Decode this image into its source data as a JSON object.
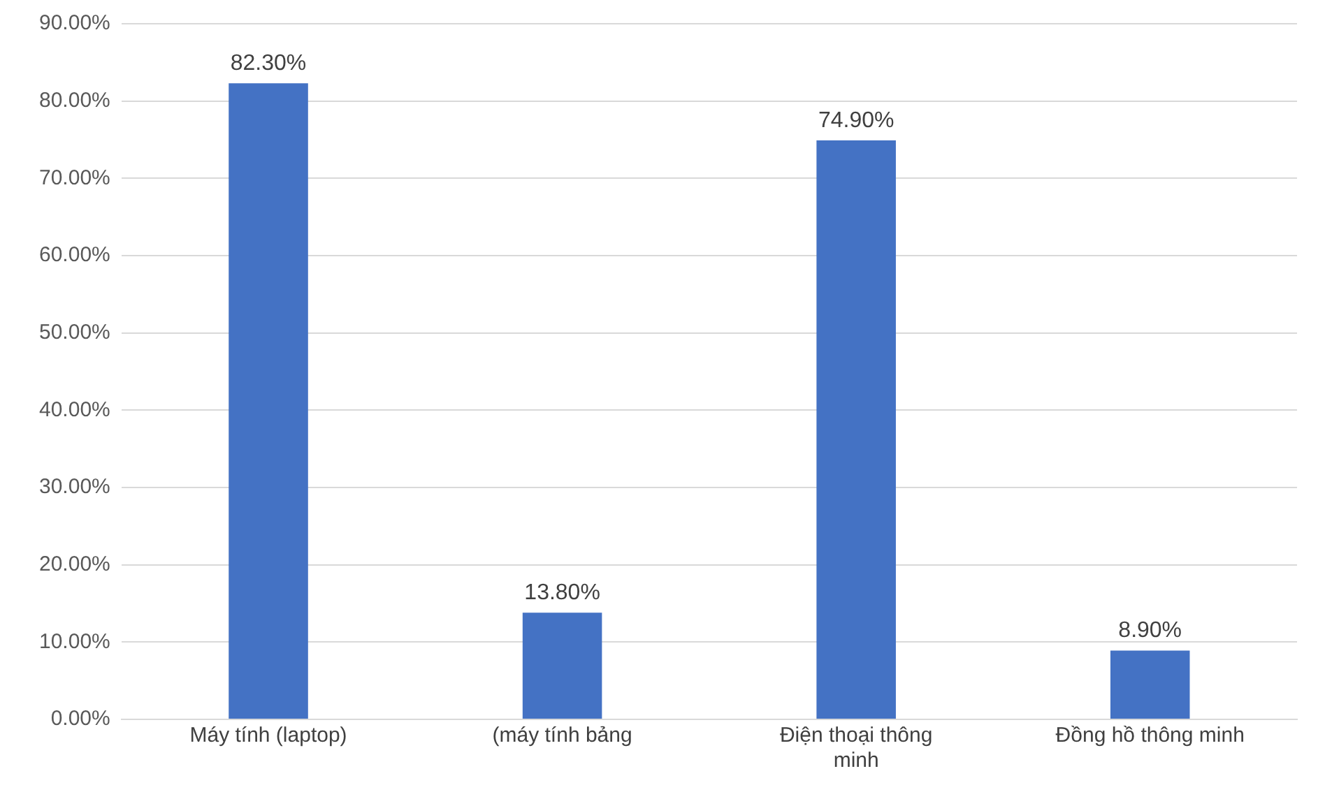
{
  "chart_data": {
    "type": "bar",
    "categories": [
      "Máy tính (laptop)",
      "(máy tính bảng",
      "Điện thoại thông minh",
      "Đồng hồ thông minh"
    ],
    "values": [
      82.3,
      13.8,
      74.9,
      8.9
    ],
    "color": "#4472c4",
    "value_labels": [
      "82.30%",
      "13.80%",
      "74.90%",
      "8.90%"
    ],
    "ylim": [
      0,
      90
    ],
    "yticks": [
      {
        "value": 0,
        "label": "0.00%"
      },
      {
        "value": 10,
        "label": "10.00%"
      },
      {
        "value": 20,
        "label": "20.00%"
      },
      {
        "value": 30,
        "label": "30.00%"
      },
      {
        "value": 40,
        "label": "40.00%"
      },
      {
        "value": 50,
        "label": "50.00%"
      },
      {
        "value": 60,
        "label": "60.00%"
      },
      {
        "value": 70,
        "label": "70.00%"
      },
      {
        "value": 80,
        "label": "80.00%"
      },
      {
        "value": 90,
        "label": "90.00%"
      }
    ],
    "grid": "y",
    "legend": false
  }
}
